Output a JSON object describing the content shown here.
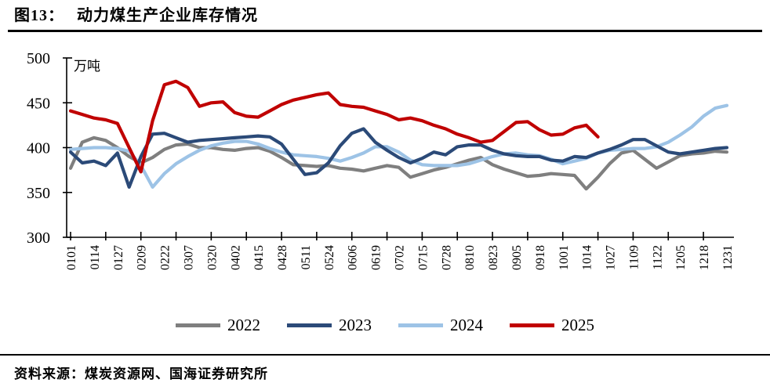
{
  "page": {
    "title_prefix": "图13：",
    "title_text": "动力煤生产企业库存情况",
    "source_text": "资料来源：煤炭资源网、国海证券研究所"
  },
  "chart_data": {
    "type": "line",
    "title": "动力煤生产企业库存情况",
    "unit_label": "万吨",
    "grid": false,
    "legend_position": "bottom",
    "y_axis": {
      "min": 300,
      "max": 500,
      "step": 50,
      "ticks": [
        300,
        350,
        400,
        450,
        500
      ]
    },
    "x_labels": [
      "0101",
      "0114",
      "0127",
      "0209",
      "0222",
      "0307",
      "0320",
      "0402",
      "0415",
      "0428",
      "0511",
      "0524",
      "0606",
      "0619",
      "0702",
      "0715",
      "0728",
      "0810",
      "0823",
      "0905",
      "0918",
      "1001",
      "1014",
      "1027",
      "1109",
      "1122",
      "1205",
      "1218",
      "1231"
    ],
    "points_per_label_interval": 2,
    "note": "values arrays hold 57 points: one at each x label (even indices) and one midpoint between labels (odd indices); 2025 series ends just after 1014",
    "series": [
      {
        "name": "2022",
        "color": "#7f7f7f",
        "values": [
          377,
          406,
          411,
          408,
          400,
          390,
          383,
          389,
          398,
          403,
          404,
          400,
          400,
          398,
          397,
          399,
          400,
          396,
          389,
          381,
          380,
          379,
          380,
          377,
          376,
          374,
          377,
          380,
          378,
          367,
          371,
          375,
          378,
          382,
          386,
          389,
          381,
          376,
          372,
          368,
          369,
          371,
          370,
          369,
          354,
          367,
          382,
          394,
          397,
          387,
          377,
          384,
          391,
          393,
          394,
          396,
          395
        ]
      },
      {
        "name": "2023",
        "color": "#2b4a78",
        "values": [
          395,
          383,
          385,
          380,
          394,
          356,
          390,
          415,
          416,
          411,
          406,
          408,
          409,
          410,
          411,
          412,
          413,
          412,
          404,
          387,
          370,
          372,
          383,
          402,
          416,
          421,
          406,
          397,
          389,
          383,
          388,
          395,
          392,
          401,
          403,
          403,
          397,
          393,
          391,
          390,
          390,
          386,
          385,
          390,
          389,
          394,
          398,
          403,
          409,
          409,
          402,
          395,
          393,
          395,
          397,
          399,
          400
        ]
      },
      {
        "name": "2024",
        "color": "#9dc3e6",
        "values": [
          398,
          399,
          400,
          400,
          399,
          396,
          380,
          356,
          371,
          382,
          390,
          397,
          402,
          405,
          407,
          407,
          404,
          399,
          395,
          392,
          391,
          390,
          388,
          385,
          389,
          394,
          401,
          401,
          395,
          386,
          381,
          380,
          380,
          380,
          382,
          386,
          390,
          393,
          394,
          392,
          391,
          387,
          382,
          385,
          388,
          394,
          397,
          398,
          399,
          399,
          401,
          406,
          414,
          423,
          435,
          444,
          447
        ]
      },
      {
        "name": "2025",
        "color": "#c00000",
        "values": [
          441,
          437,
          433,
          431,
          427,
          400,
          373,
          430,
          470,
          474,
          467,
          446,
          450,
          451,
          439,
          435,
          434,
          441,
          448,
          453,
          456,
          459,
          461,
          448,
          446,
          445,
          441,
          437,
          431,
          433,
          430,
          425,
          421,
          415,
          411,
          406,
          408,
          418,
          428,
          429,
          420,
          414,
          415,
          422,
          425,
          412,
          null,
          null,
          null,
          null,
          null,
          null,
          null,
          null,
          null,
          null,
          null
        ]
      }
    ]
  }
}
